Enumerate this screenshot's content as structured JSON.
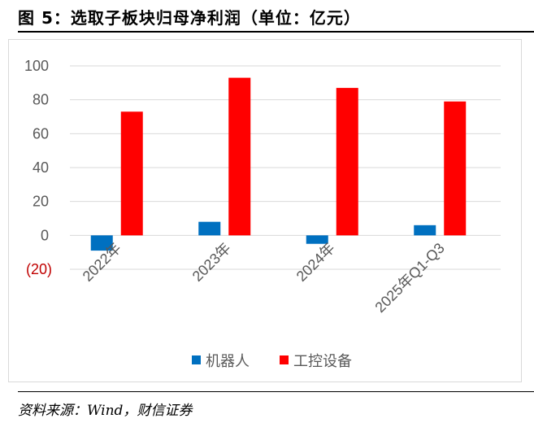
{
  "figure": {
    "title": "图 5：选取子板块归母净利润（单位：亿元）",
    "source": "资料来源：Wind，财信证券"
  },
  "colors": {
    "robot": "#0070c0",
    "industrial_control": "#ff0000",
    "negative_tick": "#c00000",
    "axis_tick": "#595959",
    "grid": "#d9d9d9"
  },
  "chart_data": {
    "type": "bar",
    "title": "",
    "xlabel": "",
    "ylabel": "",
    "ylim": [
      -20,
      100
    ],
    "yticks": [
      "(20)",
      "0",
      "20",
      "40",
      "60",
      "80",
      "100"
    ],
    "ytick_values": [
      -20,
      0,
      20,
      40,
      60,
      80,
      100
    ],
    "categories": [
      "2022年",
      "2023年",
      "2024年",
      "2025年Q1-Q3"
    ],
    "series": [
      {
        "name": "机器人",
        "values": [
          -9,
          8,
          -5,
          6
        ]
      },
      {
        "name": "工控设备",
        "values": [
          73,
          93,
          87,
          79
        ]
      }
    ],
    "grid": true,
    "legend": "bottom"
  }
}
